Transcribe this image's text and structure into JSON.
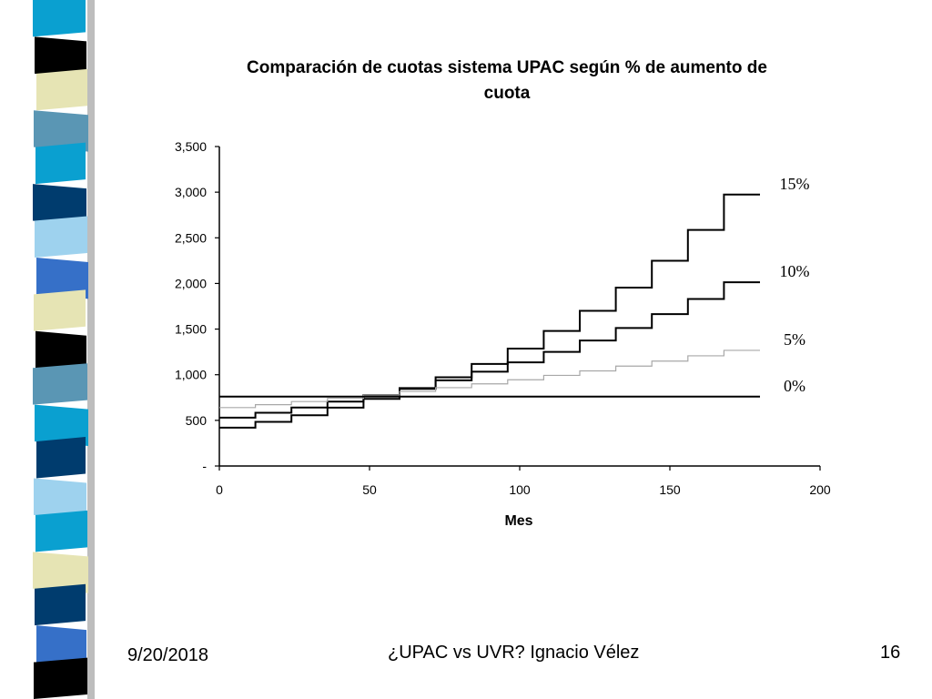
{
  "sidebar": {
    "stripe_colors": [
      "#0aa0d0",
      "#000000",
      "#e6e4b4",
      "#5a96b4",
      "#0aa0d0",
      "#003c6e",
      "#9ed2ee",
      "#3670c8",
      "#e6e4b4",
      "#000000",
      "#5a96b4",
      "#0aa0d0",
      "#003c6e",
      "#9ed2ee",
      "#0aa0d0",
      "#e6e4b4",
      "#003c6e",
      "#3670c8",
      "#000000"
    ],
    "shadow_color": "#bdbdbd"
  },
  "chart_data": {
    "type": "line",
    "title": "Comparación de cuotas sistema UPAC según % de aumento de cuota",
    "title_lines": [
      "Comparación de cuotas sistema UPAC según % de aumento de",
      "cuota"
    ],
    "xlabel": "Mes",
    "ylabel": "",
    "xlim": [
      0,
      200
    ],
    "ylim": [
      0,
      3500
    ],
    "x_ticks": [
      "0",
      "50",
      "100",
      "150",
      "200"
    ],
    "y_ticks": [
      "-",
      "500",
      "1,000",
      "1,500",
      "2,000",
      "2,500",
      "3,000",
      "3,500"
    ],
    "grid": false,
    "legend": "none",
    "step_months": 12,
    "series": [
      {
        "name": "15%",
        "color": "#000000",
        "stroke": 2,
        "x_end": 180,
        "values": [
          420,
          483,
          556,
          639,
          735,
          845,
          972,
          1118,
          1286,
          1479,
          1700,
          1955,
          2249,
          2586,
          2974
        ]
      },
      {
        "name": "10%",
        "color": "#000000",
        "stroke": 2,
        "x_end": 180,
        "values": [
          530,
          583,
          641,
          706,
          776,
          854,
          939,
          1033,
          1136,
          1250,
          1375,
          1512,
          1664,
          1830,
          2013
        ]
      },
      {
        "name": "5%",
        "color": "#a8a8a8",
        "stroke": 1.2,
        "x_end": 180,
        "values": [
          640,
          672,
          706,
          741,
          778,
          817,
          858,
          900,
          945,
          993,
          1042,
          1094,
          1149,
          1207,
          1267
        ]
      },
      {
        "name": "0%",
        "color": "#000000",
        "stroke": 2,
        "x_end": 180,
        "values": [
          760
        ]
      }
    ]
  },
  "footer": {
    "date": "9/20/2018",
    "center": "¿UPAC vs UVR? Ignacio Vélez",
    "page": "16"
  }
}
